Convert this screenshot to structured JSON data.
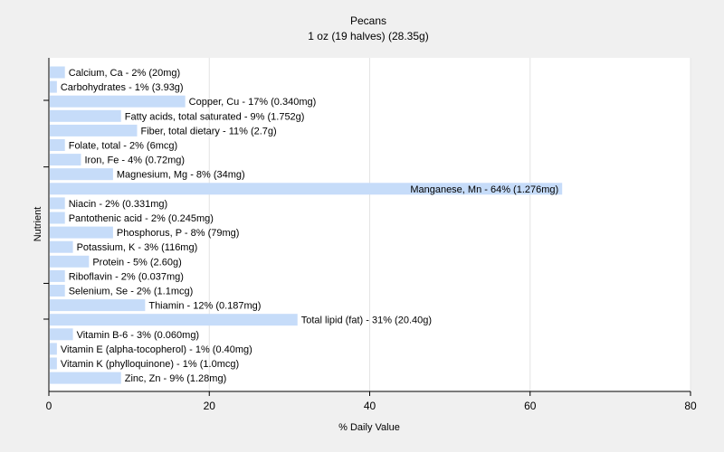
{
  "chart_data": {
    "type": "bar",
    "orientation": "horizontal",
    "title": "Pecans",
    "subtitle": "1 oz (19 halves) (28.35g)",
    "xlabel": "% Daily Value",
    "ylabel": "Nutrient",
    "xlim": [
      0,
      80
    ],
    "x_ticks": [
      0,
      20,
      40,
      60,
      80
    ],
    "grid": "vertical",
    "bar_color": "#c6dcf9",
    "categories": [
      "Calcium, Ca",
      "Carbohydrates",
      "Copper, Cu",
      "Fatty acids, total saturated",
      "Fiber, total dietary",
      "Folate, total",
      "Iron, Fe",
      "Magnesium, Mg",
      "Manganese, Mn",
      "Niacin",
      "Pantothenic acid",
      "Phosphorus, P",
      "Potassium, K",
      "Protein",
      "Riboflavin",
      "Selenium, Se",
      "Thiamin",
      "Total lipid (fat)",
      "Vitamin B-6",
      "Vitamin E (alpha-tocopherol)",
      "Vitamin K (phylloquinone)",
      "Zinc, Zn"
    ],
    "values": [
      2,
      1,
      17,
      9,
      11,
      2,
      4,
      8,
      64,
      2,
      2,
      8,
      3,
      5,
      2,
      2,
      12,
      31,
      3,
      1,
      1,
      9
    ],
    "labels": [
      "Calcium, Ca - 2% (20mg)",
      "Carbohydrates - 1% (3.93g)",
      "Copper, Cu - 17% (0.340mg)",
      "Fatty acids, total saturated - 9% (1.752g)",
      "Fiber, total dietary - 11% (2.7g)",
      "Folate, total - 2% (6mcg)",
      "Iron, Fe - 4% (0.72mg)",
      "Magnesium, Mg - 8% (34mg)",
      "Manganese, Mn - 64% (1.276mg)",
      "Niacin - 2% (0.331mg)",
      "Pantothenic acid - 2% (0.245mg)",
      "Phosphorus, P - 8% (79mg)",
      "Potassium, K - 3% (116mg)",
      "Protein - 5% (2.60g)",
      "Riboflavin - 2% (0.037mg)",
      "Selenium, Se - 2% (1.1mcg)",
      "Thiamin - 12% (0.187mg)",
      "Total lipid (fat) - 31% (20.40g)",
      "Vitamin B-6 - 3% (0.060mg)",
      "Vitamin E (alpha-tocopherol) - 1% (0.40mg)",
      "Vitamin K (phylloquinone) - 1% (1.0mcg)",
      "Zinc, Zn - 9% (1.28mg)"
    ]
  }
}
